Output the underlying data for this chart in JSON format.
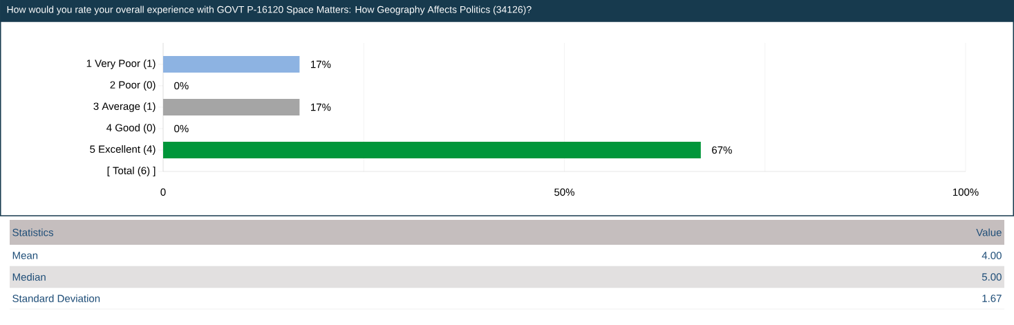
{
  "chart_data": [
    {
      "type": "bar",
      "orientation": "horizontal",
      "title": "How would you rate your overall experience with GOVT P-16120 Space Matters: How Geography Affects Politics (34126)?",
      "categories": [
        "1 Very Poor (1)",
        "2 Poor (0)",
        "3 Average (1)",
        "4 Good (0)",
        "5 Excellent (4)",
        "[ Total (6) ]"
      ],
      "values": [
        17,
        0,
        17,
        0,
        67,
        null
      ],
      "value_labels": [
        "17%",
        "0%",
        "17%",
        "0%",
        "67%",
        null
      ],
      "colors": [
        "#8db3e2",
        "#e46c0a",
        "#a5a5a5",
        "#4f81bd",
        "#00963a",
        null
      ],
      "xlim": [
        0,
        100
      ],
      "xticks": [
        {
          "value": 0,
          "label": "0"
        },
        {
          "value": 25,
          "label": null
        },
        {
          "value": 50,
          "label": "50%"
        },
        {
          "value": 75,
          "label": null
        },
        {
          "value": 100,
          "label": "100%"
        }
      ],
      "grid": "x"
    },
    {
      "type": "other",
      "annotations": [
        "Statistics",
        "Value"
      ],
      "categories": [
        "Mean",
        "Median",
        "Standard Deviation"
      ],
      "value_labels": [
        "4.00",
        "5.00",
        "1.67"
      ]
    }
  ]
}
